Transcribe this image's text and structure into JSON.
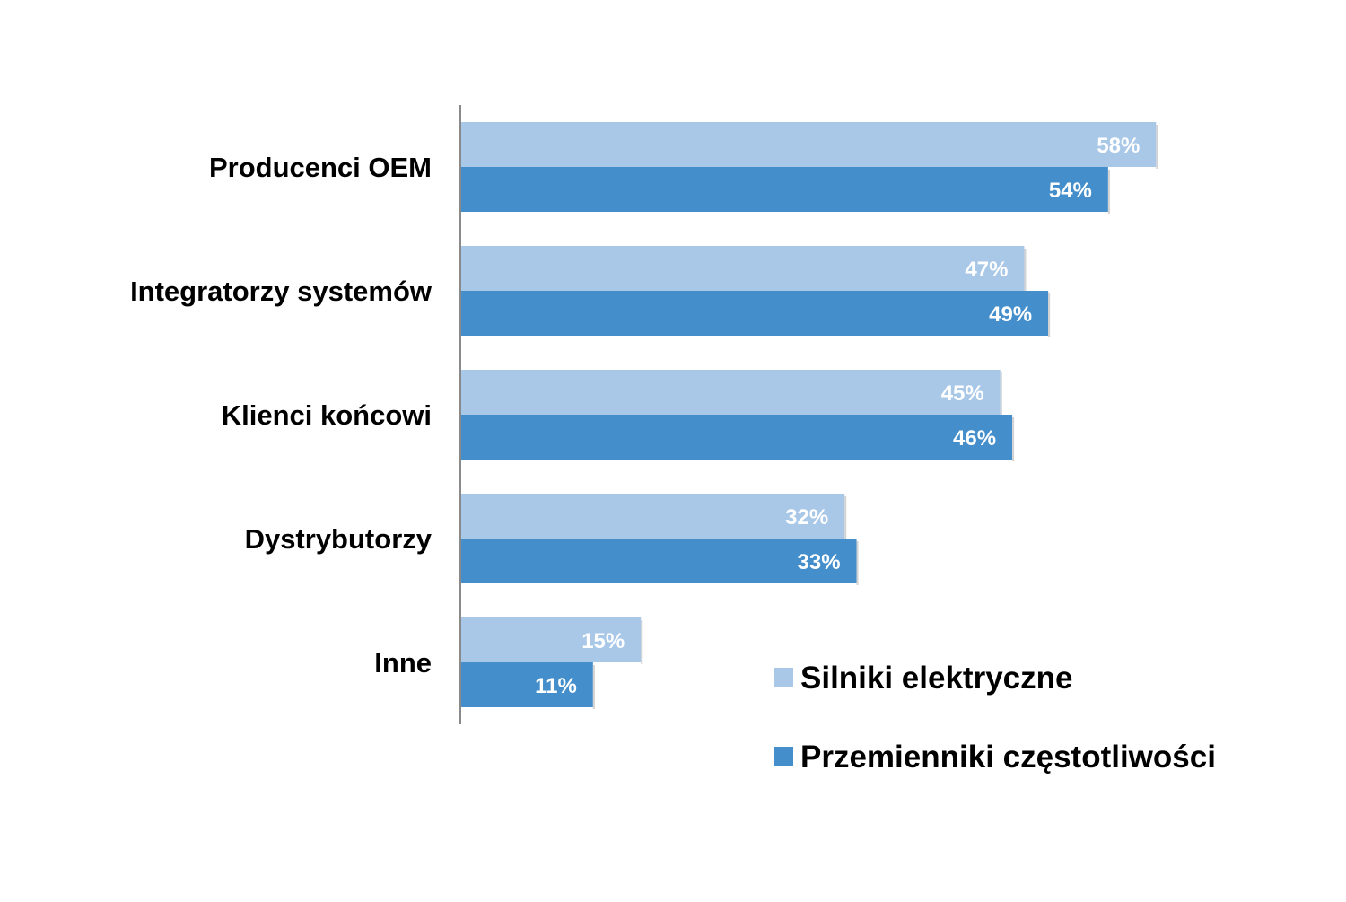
{
  "chart_data": {
    "type": "bar",
    "orientation": "horizontal",
    "categories": [
      "Producenci OEM",
      "Integratorzy systemów",
      "Klienci końcowi",
      "Dystrybutorzy",
      "Inne"
    ],
    "series": [
      {
        "name": "Silniki elektryczne",
        "color": "#a9c8e8",
        "values": [
          58,
          47,
          45,
          32,
          15
        ],
        "labels": [
          "58%",
          "47%",
          "45%",
          "32%",
          "15%"
        ]
      },
      {
        "name": "Przemienniki częstotliwości",
        "color": "#438ecb",
        "values": [
          54,
          49,
          46,
          33,
          11
        ],
        "labels": [
          "54%",
          "49%",
          "46%",
          "33%",
          "11%"
        ]
      }
    ],
    "unit": "%",
    "xlim": [
      0,
      74
    ],
    "grid": false,
    "legend": "bottom-right",
    "axis_color": "#8a8a8a",
    "category_label_color": "#000000",
    "data_label_color": "#ffffff"
  }
}
